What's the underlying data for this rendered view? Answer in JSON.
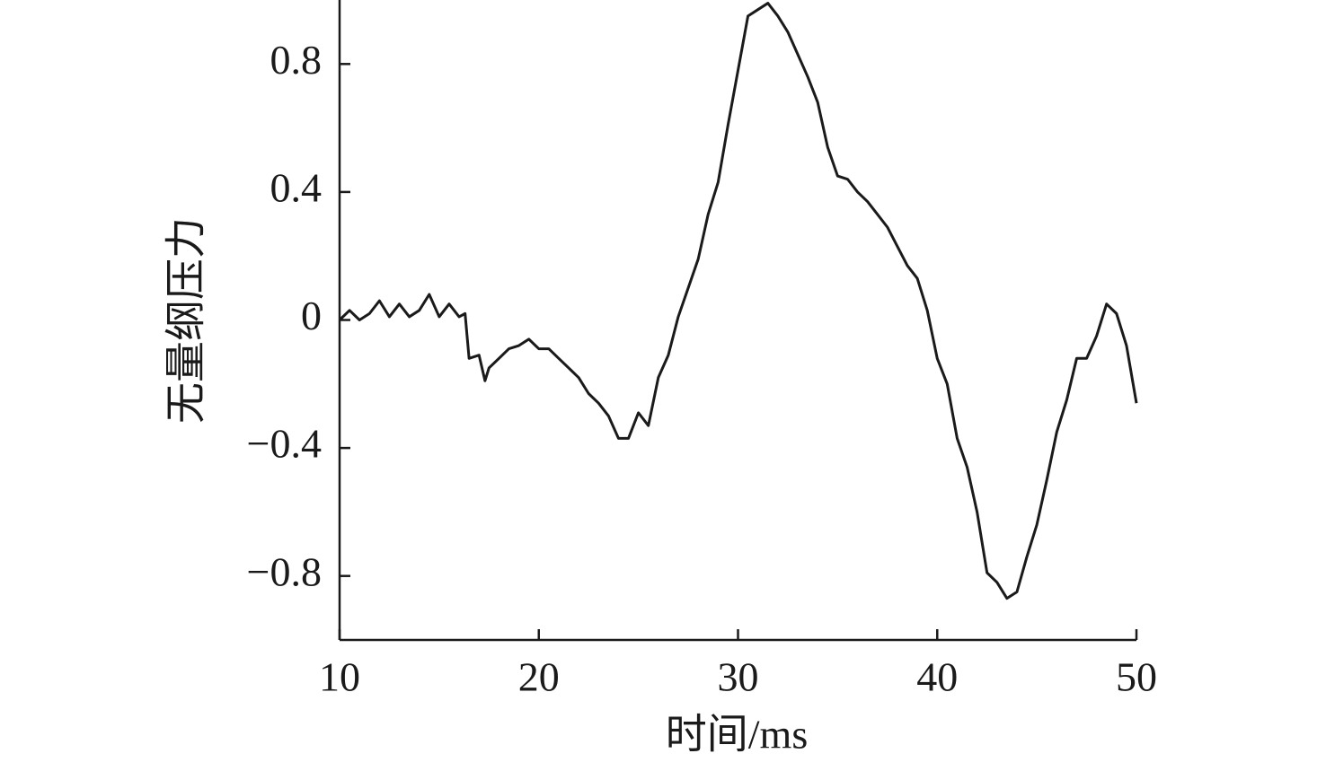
{
  "chart_data": {
    "type": "line",
    "x_label": "时间/ms",
    "y_label": "无量纲压力",
    "x": [
      10,
      10.5,
      11,
      11.5,
      12,
      12.5,
      13,
      13.5,
      14,
      14.5,
      15,
      15.5,
      16,
      16.3,
      16.5,
      17,
      17.3,
      17.5,
      18,
      18.5,
      19,
      19.5,
      20,
      20.5,
      21,
      21.5,
      22,
      22.5,
      23,
      23.5,
      24,
      24.5,
      25,
      25.5,
      26,
      26.5,
      27,
      27.5,
      28,
      28.5,
      29,
      29.5,
      30,
      30.5,
      31,
      31.5,
      32,
      32.5,
      33,
      33.5,
      34,
      34.5,
      35,
      35.5,
      36,
      36.5,
      37,
      37.5,
      38,
      38.5,
      39,
      39.5,
      40,
      40.5,
      41,
      41.5,
      42,
      42.5,
      43,
      43.5,
      44,
      44.5,
      45,
      45.5,
      46,
      46.5,
      47,
      47.5,
      48,
      48.5,
      49,
      49.5,
      50
    ],
    "series": [
      {
        "color": "#1a1a1a",
        "values": [
          0,
          0.03,
          0,
          0.02,
          0.06,
          0.01,
          0.05,
          0.01,
          0.03,
          0.08,
          0.01,
          0.05,
          0.01,
          0.02,
          -0.12,
          -0.11,
          -0.19,
          -0.15,
          -0.12,
          -0.09,
          -0.08,
          -0.06,
          -0.09,
          -0.09,
          -0.12,
          -0.15,
          -0.18,
          -0.23,
          -0.26,
          -0.3,
          -0.37,
          -0.37,
          -0.29,
          -0.33,
          -0.18,
          -0.11,
          0.01,
          0.1,
          0.19,
          0.33,
          0.43,
          0.61,
          0.78,
          0.95,
          0.97,
          0.99,
          0.95,
          0.9,
          0.83,
          0.76,
          0.68,
          0.54,
          0.45,
          0.44,
          0.4,
          0.37,
          0.33,
          0.29,
          0.23,
          0.17,
          0.13,
          0.03,
          -0.12,
          -0.2,
          -0.37,
          -0.46,
          -0.6,
          -0.79,
          -0.82,
          -0.87,
          -0.85,
          -0.74,
          -0.64,
          -0.5,
          -0.35,
          -0.25,
          -0.12,
          -0.12,
          -0.05,
          0.05,
          0.02,
          -0.08,
          -0.26
        ]
      }
    ],
    "xlim": [
      10,
      50
    ],
    "xticks": [
      10,
      20,
      30,
      40,
      50
    ],
    "ylim": [
      -1,
      1
    ],
    "yticks": [
      {
        "value": -0.8,
        "label": "−0.8"
      },
      {
        "value": -0.4,
        "label": "−0.4"
      },
      0,
      0.4,
      0.8
    ]
  }
}
